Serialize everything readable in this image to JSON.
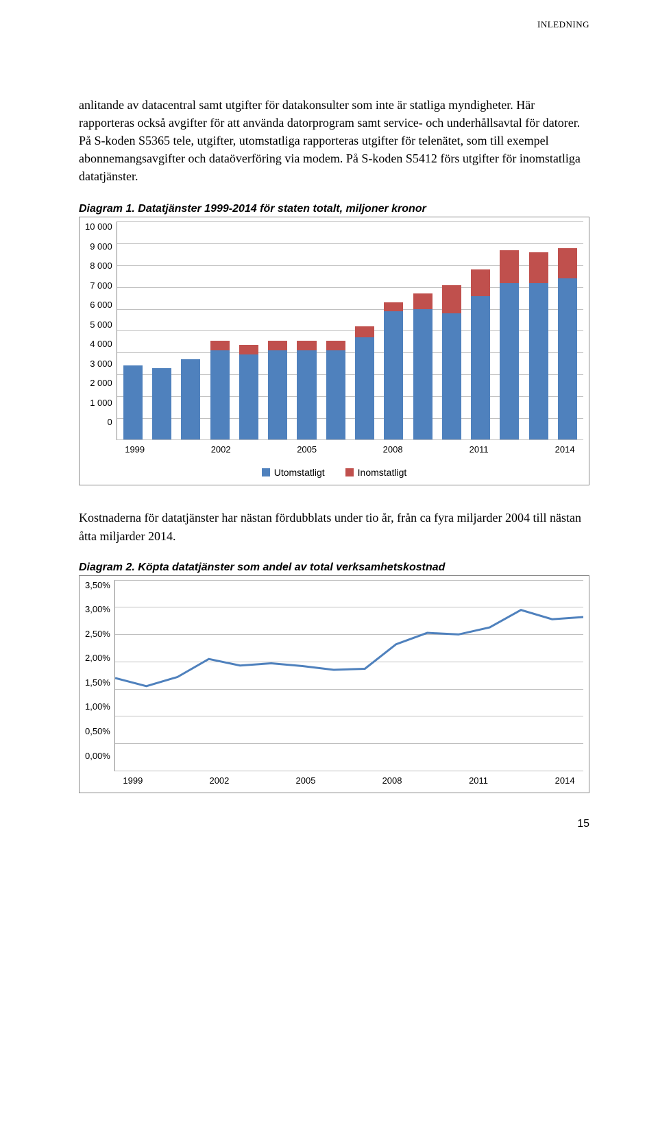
{
  "header": {
    "section": "INLEDNING"
  },
  "para1": "anlitande av datacentral samt utgifter för datakonsulter som inte är statliga myndigheter. Här rapporteras också avgifter för att använda datorprogram samt service- och underhållsavtal för datorer. På S-koden S5365 tele, utgifter, utomstatliga rapporteras utgifter för telenätet, som till exempel abonnemangsavgifter och dataöverföring via modem. På S-koden S5412 förs utgifter för inomstatliga datatjänster.",
  "chart1": {
    "title": "Diagram 1. Datatjänster 1999-2014 för staten totalt, miljoner kronor",
    "type": "stacked-bar",
    "y_max": 10000,
    "y_ticks": [
      "10 000",
      "9 000",
      "8 000",
      "7 000",
      "6 000",
      "5 000",
      "4 000",
      "3 000",
      "2 000",
      "1 000",
      "0"
    ],
    "x_labels": [
      "1999",
      "2002",
      "2005",
      "2008",
      "2011",
      "2014"
    ],
    "years": [
      1999,
      2000,
      2001,
      2002,
      2003,
      2004,
      2005,
      2006,
      2007,
      2008,
      2009,
      2010,
      2011,
      2012,
      2013,
      2014
    ],
    "series_bottom_name": "Utomstatligt",
    "series_top_name": "Inomstatligt",
    "bottom_values": [
      3400,
      3300,
      3700,
      4100,
      3900,
      4100,
      4100,
      4100,
      4700,
      5900,
      6000,
      5800,
      6600,
      7200,
      7200,
      7400
    ],
    "top_values": [
      0,
      0,
      0,
      450,
      450,
      450,
      450,
      450,
      500,
      400,
      700,
      1300,
      1200,
      1500,
      1400,
      1400
    ],
    "bottom_color": "#4f81bd",
    "top_color": "#c0504d",
    "grid_color": "#bfbfbf",
    "plot_bg": "#ffffff",
    "border_color": "#888888",
    "tick_fontsize": 13,
    "title_fontsize": 16
  },
  "para2": "Kostnaderna för datatjänster har nästan fördubblats under tio år, från ca fyra miljarder 2004 till nästan åtta miljarder 2014.",
  "chart2": {
    "title": "Diagram 2. Köpta datatjänster som andel av total verksamhetskostnad",
    "type": "line",
    "y_min": 0.0,
    "y_max": 3.5,
    "y_ticks": [
      "3,50%",
      "3,00%",
      "2,50%",
      "2,00%",
      "1,50%",
      "1,00%",
      "0,50%",
      "0,00%"
    ],
    "x_labels": [
      "1999",
      "2002",
      "2005",
      "2008",
      "2011",
      "2014"
    ],
    "years": [
      1999,
      2000,
      2001,
      2002,
      2003,
      2004,
      2005,
      2006,
      2007,
      2008,
      2009,
      2010,
      2011,
      2012,
      2013,
      2014
    ],
    "values": [
      1.7,
      1.55,
      1.72,
      2.05,
      1.93,
      1.97,
      1.92,
      1.85,
      1.87,
      2.32,
      2.53,
      2.5,
      2.63,
      2.95,
      2.78,
      2.82
    ],
    "line_color": "#4f81bd",
    "line_width": 3,
    "grid_color": "#bfbfbf",
    "plot_bg": "#ffffff"
  },
  "page_number": "15"
}
